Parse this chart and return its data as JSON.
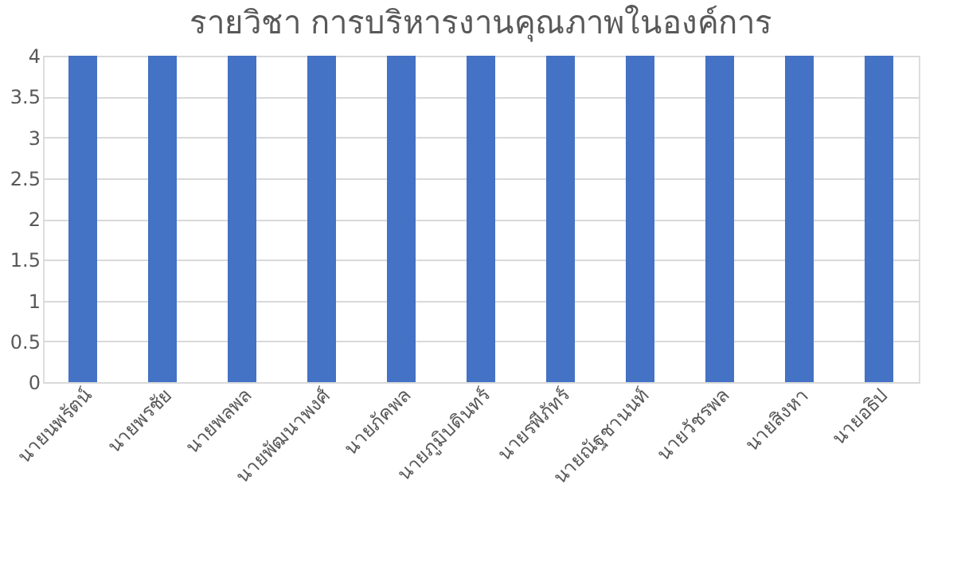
{
  "chart_data": {
    "type": "bar",
    "title": "รายวิชา การบริหารงานคุณภาพในองค์การ",
    "categories": [
      "นายนพรัตน์",
      "นายพรชัย",
      "นายพลพล",
      "นายพัฒนาพงศ์",
      "นายภัคพล",
      "นายภูมิบดินทร์",
      "นายรพีภัทร์",
      "นายณัฐชานนท์",
      "นายวัชรพล",
      "นายสิงหา",
      "นายอธิป"
    ],
    "values": [
      4,
      4,
      4,
      4,
      4,
      4,
      4,
      4,
      4,
      4,
      4
    ],
    "color": "#4472c4",
    "ylim": [
      0,
      4
    ],
    "yticks": [
      0,
      0.5,
      1,
      1.5,
      2,
      2.5,
      3,
      3.5,
      4
    ],
    "grid": "y"
  }
}
